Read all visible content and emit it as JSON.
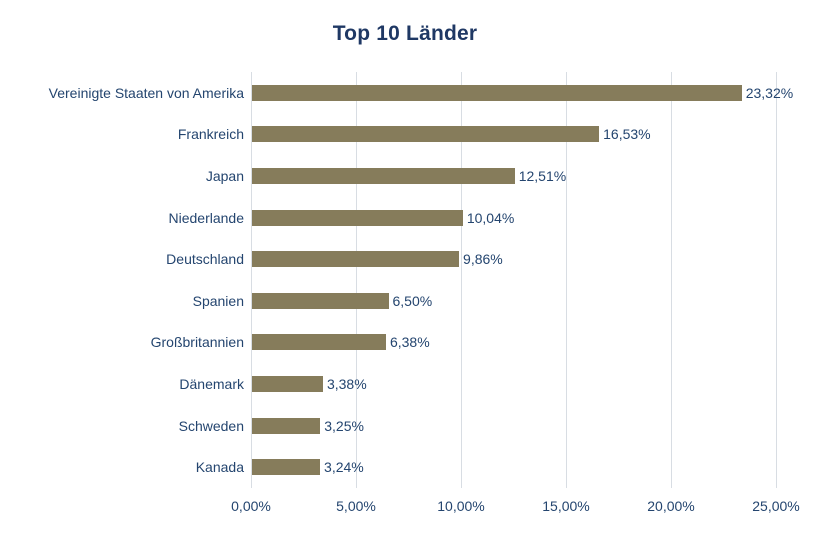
{
  "title": "Top 10 Länder",
  "colors": {
    "bar": "#867C5B",
    "title_text": "#1F3864",
    "label_text": "#24456F",
    "gridline": "#D8DDE3",
    "background": "#FFFFFF"
  },
  "chart_data": {
    "type": "bar",
    "orientation": "horizontal",
    "title": "Top 10 Länder",
    "categories": [
      "Vereinigte Staaten von Amerika",
      "Frankreich",
      "Japan",
      "Niederlande",
      "Deutschland",
      "Spanien",
      "Großbritannien",
      "Dänemark",
      "Schweden",
      "Kanada"
    ],
    "values": [
      23.32,
      16.53,
      12.51,
      10.04,
      9.86,
      6.5,
      6.38,
      3.38,
      3.25,
      3.24
    ],
    "value_labels": [
      "23,32%",
      "16,53%",
      "12,51%",
      "10,04%",
      "9,86%",
      "6,50%",
      "6,38%",
      "3,38%",
      "3,25%",
      "3,24%"
    ],
    "xlabel": "",
    "ylabel": "",
    "xlim": [
      0,
      25
    ],
    "x_ticks": [
      0,
      5,
      10,
      15,
      20,
      25
    ],
    "x_tick_labels": [
      "0,00%",
      "5,00%",
      "10,00%",
      "15,00%",
      "20,00%",
      "25,00%"
    ],
    "grid": "vertical-only",
    "legend": "none"
  }
}
